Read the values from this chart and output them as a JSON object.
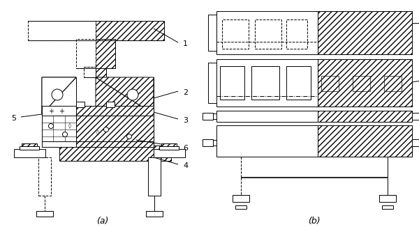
{
  "fig_width": 6.0,
  "fig_height": 3.26,
  "dpi": 100,
  "label_a": "(a)",
  "label_b": "(b)"
}
